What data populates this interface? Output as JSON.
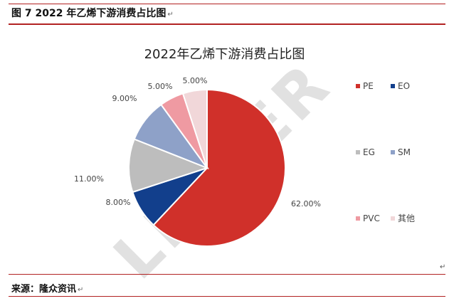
{
  "figure_caption": "图 7 2022 年乙烯下游消费占比图",
  "pilcrow": "↵",
  "source": "来源：隆众资讯",
  "watermark": "LINKER",
  "chart_data": {
    "type": "pie",
    "title": "2022年乙烯下游消费占比图",
    "start_angle_deg": 0,
    "direction": "clockwise",
    "slices": [
      {
        "label": "PE",
        "value": 62.0,
        "value_label": "62.00%",
        "color": "#d0302a"
      },
      {
        "label": "EO",
        "value": 8.0,
        "value_label": "8.00%",
        "color": "#123f8c"
      },
      {
        "label": "EG",
        "value": 11.0,
        "value_label": "11.00%",
        "color": "#bdbdbd"
      },
      {
        "label": "SM",
        "value": 9.0,
        "value_label": "9.00%",
        "color": "#8ea1c8"
      },
      {
        "label": "PVC",
        "value": 5.0,
        "value_label": "5.00%",
        "color": "#ef9aa2"
      },
      {
        "label": "其他",
        "value": 5.0,
        "value_label": "5.00%",
        "color": "#f1d7d9"
      }
    ],
    "legend_position": "right"
  }
}
